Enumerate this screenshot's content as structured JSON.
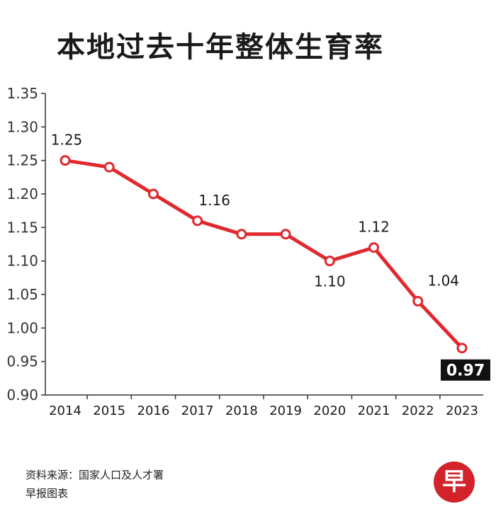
{
  "header": {
    "title": "本地过去十年整体生育率"
  },
  "chart_data": {
    "type": "line",
    "title": "本地过去十年整体生育率",
    "categories": [
      "2014",
      "2015",
      "2016",
      "2017",
      "2018",
      "2019",
      "2020",
      "2021",
      "2022",
      "2023"
    ],
    "values": [
      1.25,
      1.24,
      1.2,
      1.16,
      1.14,
      1.14,
      1.1,
      1.12,
      1.04,
      0.97
    ],
    "ylim": [
      0.9,
      1.35
    ],
    "yticks": [
      "0.90",
      "0.95",
      "1.00",
      "1.05",
      "1.10",
      "1.15",
      "1.20",
      "1.25",
      "1.30",
      "1.35"
    ],
    "data_labels": [
      {
        "index": 0,
        "text": "1.25"
      },
      {
        "index": 3,
        "text": "1.16"
      },
      {
        "index": 6,
        "text": "1.10"
      },
      {
        "index": 7,
        "text": "1.12"
      },
      {
        "index": 8,
        "text": "1.04"
      },
      {
        "index": 9,
        "text": "0.97",
        "highlight": true
      }
    ],
    "line_color": "#e0292f",
    "grid": false
  },
  "footer": {
    "source": "资料来源：国家人口及人才署",
    "credit": "早报图表"
  },
  "logo": {
    "text": "早",
    "color": "#d2232a"
  }
}
